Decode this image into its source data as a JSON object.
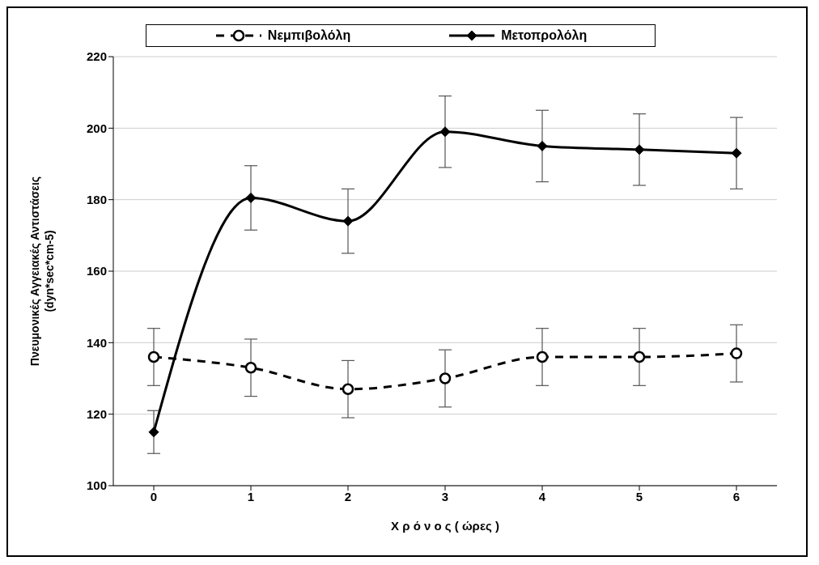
{
  "chart_data": {
    "type": "line",
    "xlabel": "Χ ρ ό ν ο ς  ( ώρες )",
    "ylabel": "Πνευμονικές Αγγειακές Αντιστάσεις\n(dyn*sec*cm-5)",
    "categories": [
      "0",
      "1",
      "2",
      "3",
      "4",
      "5",
      "6"
    ],
    "series": [
      {
        "name": "Νεμπιβολόλη",
        "color": "#000000",
        "marker": "circle",
        "line_style": "dashed",
        "values": [
          136,
          133,
          127,
          130,
          136,
          136,
          137
        ],
        "errors": [
          8,
          8,
          8,
          8,
          8,
          8,
          8
        ]
      },
      {
        "name": "Μετοπρολόλη",
        "color": "#000000",
        "marker": "diamond",
        "line_style": "solid",
        "values": [
          115,
          180.5,
          174,
          199,
          195,
          194,
          193
        ],
        "errors": [
          6,
          9,
          9,
          10,
          10,
          10,
          10
        ]
      }
    ],
    "ylim": [
      100,
      220
    ],
    "yticks": [
      100,
      120,
      140,
      160,
      180,
      200,
      220
    ],
    "grid": "y",
    "legend": "top"
  }
}
